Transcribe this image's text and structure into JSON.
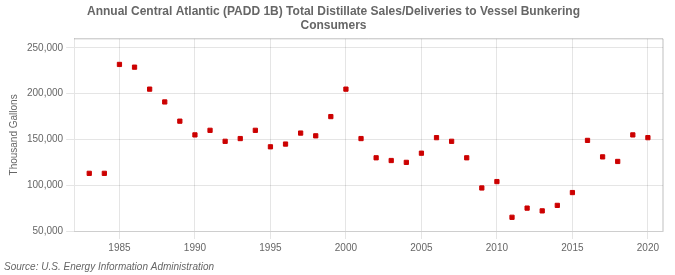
{
  "chart_data": {
    "type": "scatter",
    "title": "Annual Central Atlantic (PADD 1B) Total Distillate Sales/Deliveries to Vessel Bunkering\nConsumers",
    "ylabel": "Thousand Gallons",
    "annotations": [
      "Source: U.S. Energy Information Administration"
    ],
    "x": [
      1983,
      1984,
      1985,
      1986,
      1987,
      1988,
      1989,
      1990,
      1991,
      1992,
      1993,
      1994,
      1995,
      1996,
      1997,
      1998,
      1999,
      2000,
      2001,
      2002,
      2003,
      2004,
      2005,
      2006,
      2007,
      2008,
      2009,
      2010,
      2011,
      2012,
      2013,
      2014,
      2015,
      2016,
      2017,
      2018,
      2019,
      2020
    ],
    "values": [
      113000,
      113000,
      232000,
      229000,
      205000,
      191000,
      170000,
      155000,
      160000,
      148000,
      151000,
      160000,
      142000,
      145000,
      157000,
      154000,
      175000,
      205000,
      151000,
      130000,
      127000,
      125000,
      135000,
      152000,
      148000,
      130000,
      97000,
      104000,
      65000,
      75000,
      72000,
      78000,
      92000,
      149000,
      131000,
      126000,
      155000,
      152000
    ],
    "color": "#cc0000",
    "marker": "square",
    "xlim": [
      1982,
      2021
    ],
    "ylim": [
      50000,
      260000
    ],
    "xticks": [
      1985,
      1990,
      1995,
      2000,
      2005,
      2010,
      2015,
      2020
    ],
    "yticks": [
      {
        "value": 50000,
        "label": "50,000"
      },
      {
        "value": 100000,
        "label": "100,000"
      },
      {
        "value": 150000,
        "label": "150,000"
      },
      {
        "value": 200000,
        "label": "200,000"
      },
      {
        "value": 250000,
        "label": "250,000"
      }
    ],
    "grid": true
  }
}
